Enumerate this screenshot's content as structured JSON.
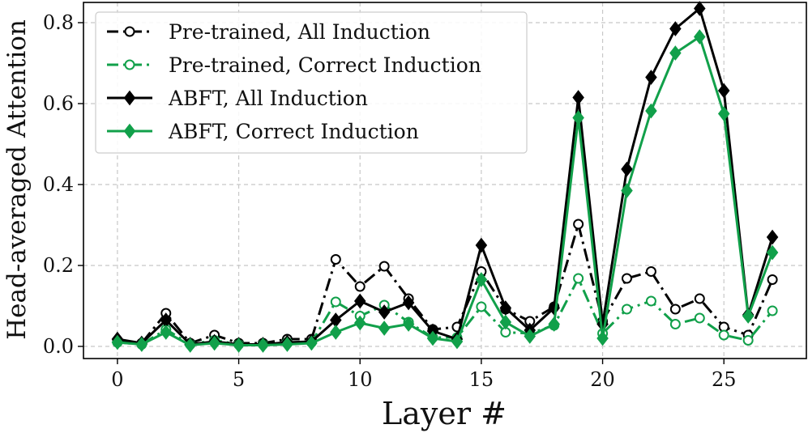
{
  "chart_data": {
    "type": "line",
    "xlabel": "Layer #",
    "ylabel": "Head-averaged Attention",
    "xlim": [
      -1.4,
      28.4
    ],
    "ylim": [
      -0.03,
      0.85
    ],
    "xticks": [
      0,
      5,
      10,
      15,
      20,
      25
    ],
    "yticks": [
      0.0,
      0.2,
      0.4,
      0.6,
      0.8
    ],
    "xtick_labels": [
      "0",
      "5",
      "10",
      "15",
      "20",
      "25"
    ],
    "ytick_labels": [
      "0.0",
      "0.2",
      "0.4",
      "0.6",
      "0.8"
    ],
    "grid": true,
    "legend_position": "top-left",
    "x": [
      0,
      1,
      2,
      3,
      4,
      5,
      6,
      7,
      8,
      9,
      10,
      11,
      12,
      13,
      14,
      15,
      16,
      17,
      18,
      19,
      20,
      21,
      22,
      23,
      24,
      25,
      26,
      27
    ],
    "series": [
      {
        "name": "Pre-trained, All Induction",
        "color": "#000000",
        "marker": "open-circle",
        "line": "dashdot",
        "values": [
          0.015,
          0.008,
          0.082,
          0.008,
          0.028,
          0.008,
          0.008,
          0.018,
          0.018,
          0.215,
          0.148,
          0.198,
          0.118,
          0.042,
          0.048,
          0.185,
          0.092,
          0.062,
          0.098,
          0.302,
          0.062,
          0.168,
          0.185,
          0.092,
          0.118,
          0.048,
          0.028,
          0.165
        ]
      },
      {
        "name": "Pre-trained, Correct Induction",
        "color": "#11a04a",
        "marker": "open-circle",
        "line": "dashdot",
        "values": [
          0.01,
          0.005,
          0.042,
          0.005,
          0.015,
          0.005,
          0.005,
          0.01,
          0.01,
          0.11,
          0.075,
          0.102,
          0.06,
          0.022,
          0.022,
          0.098,
          0.035,
          0.032,
          0.052,
          0.168,
          0.032,
          0.092,
          0.112,
          0.055,
          0.07,
          0.028,
          0.015,
          0.088
        ]
      },
      {
        "name": "ABFT, All Induction",
        "color": "#000000",
        "marker": "diamond",
        "line": "solid",
        "values": [
          0.018,
          0.008,
          0.065,
          0.005,
          0.012,
          0.005,
          0.005,
          0.01,
          0.012,
          0.065,
          0.112,
          0.085,
          0.108,
          0.038,
          0.018,
          0.25,
          0.095,
          0.04,
          0.095,
          0.615,
          0.055,
          0.438,
          0.665,
          0.785,
          0.835,
          0.632,
          0.078,
          0.27
        ]
      },
      {
        "name": "ABFT, Correct Induction",
        "color": "#11a04a",
        "marker": "diamond",
        "line": "solid",
        "values": [
          0.01,
          0.005,
          0.035,
          0.003,
          0.008,
          0.003,
          0.003,
          0.005,
          0.008,
          0.035,
          0.058,
          0.045,
          0.055,
          0.02,
          0.012,
          0.165,
          0.06,
          0.025,
          0.055,
          0.565,
          0.02,
          0.385,
          0.582,
          0.725,
          0.765,
          0.575,
          0.075,
          0.232
        ]
      }
    ]
  }
}
